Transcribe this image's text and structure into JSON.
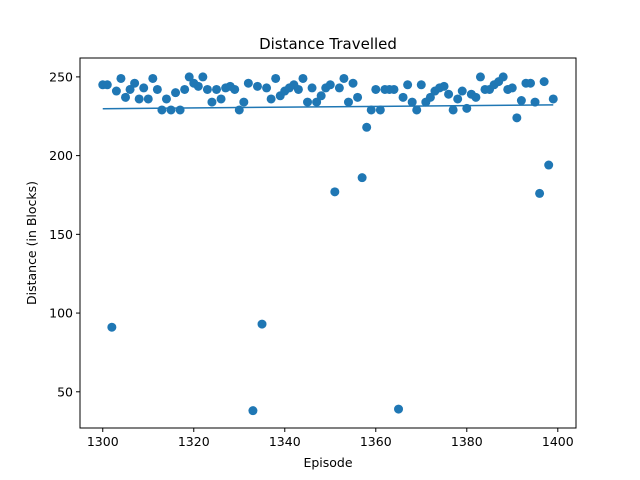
{
  "chart_data": {
    "type": "scatter",
    "title": "Distance Travelled",
    "xlabel": "Episode",
    "ylabel": "Distance (in Blocks)",
    "xlim": [
      1295,
      1404
    ],
    "ylim": [
      27,
      262
    ],
    "xticks": [
      1300,
      1320,
      1340,
      1360,
      1380,
      1400
    ],
    "yticks": [
      50,
      100,
      150,
      200,
      250
    ],
    "grid": false,
    "colors": {
      "points": "#1f77b4",
      "trend": "#1f77b4"
    },
    "series": [
      {
        "kind": "points",
        "x": [
          1300,
          1301,
          1302,
          1303,
          1304,
          1305,
          1306,
          1307,
          1308,
          1309,
          1310,
          1311,
          1312,
          1313,
          1314,
          1315,
          1316,
          1317,
          1318,
          1319,
          1320,
          1321,
          1322,
          1323,
          1324,
          1325,
          1326,
          1327,
          1328,
          1329,
          1330,
          1331,
          1332,
          1333,
          1334,
          1335,
          1336,
          1337,
          1338,
          1339,
          1340,
          1341,
          1342,
          1343,
          1344,
          1345,
          1346,
          1347,
          1348,
          1349,
          1350,
          1351,
          1352,
          1353,
          1354,
          1355,
          1356,
          1357,
          1358,
          1359,
          1360,
          1361,
          1362,
          1363,
          1364,
          1365,
          1366,
          1367,
          1368,
          1369,
          1370,
          1371,
          1372,
          1373,
          1374,
          1375,
          1376,
          1377,
          1378,
          1379,
          1380,
          1381,
          1382,
          1383,
          1384,
          1385,
          1386,
          1387,
          1388,
          1389,
          1390,
          1391,
          1392,
          1393,
          1394,
          1395,
          1396,
          1397,
          1398,
          1399
        ],
        "y": [
          245,
          245,
          91,
          241,
          249,
          237,
          242,
          246,
          236,
          243,
          236,
          249,
          242,
          229,
          236,
          229,
          240,
          229,
          242,
          250,
          246,
          244,
          250,
          242,
          234,
          242,
          236,
          243,
          244,
          242,
          229,
          234,
          246,
          38,
          244,
          93,
          243,
          236,
          249,
          238,
          241,
          243,
          245,
          242,
          249,
          234,
          243,
          234,
          238,
          243,
          245,
          177,
          243,
          249,
          234,
          246,
          237,
          186,
          218,
          229,
          242,
          229,
          242,
          242,
          242,
          39,
          237,
          245,
          234,
          229,
          245,
          234,
          237,
          241,
          243,
          244,
          239,
          229,
          236,
          241,
          230,
          239,
          237,
          250,
          242,
          242,
          245,
          247,
          250,
          242,
          243,
          224,
          235,
          246,
          246,
          234,
          176,
          247,
          194,
          236
        ]
      },
      {
        "kind": "trend",
        "x": [
          1300,
          1399
        ],
        "y": [
          229.8,
          232.2
        ]
      }
    ]
  }
}
